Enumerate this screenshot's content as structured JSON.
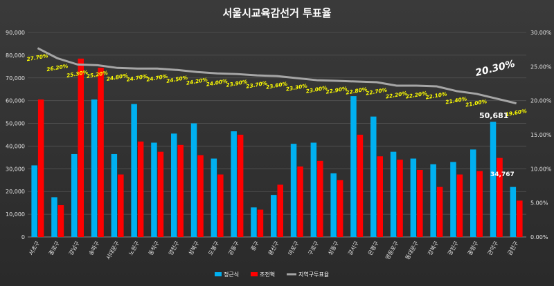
{
  "chart_data": {
    "type": "bar",
    "title": "서울시교육감선거 투표율",
    "categories": [
      "서초구",
      "종로구",
      "강남구",
      "송파구",
      "서대문구",
      "노원구",
      "동작구",
      "양천구",
      "성북구",
      "도봉구",
      "강동구",
      "중구",
      "용산구",
      "마포구",
      "구로구",
      "성동구",
      "강서구",
      "은평구",
      "영등포구",
      "동대문구",
      "강북구",
      "광진구",
      "중랑구",
      "관악구",
      "금천구"
    ],
    "series": [
      {
        "name": "정근식",
        "axis": "left",
        "color": "#00b0f0",
        "values": [
          31500,
          17500,
          36500,
          60500,
          36500,
          58500,
          41500,
          45500,
          50000,
          34500,
          46500,
          13000,
          18500,
          41000,
          41500,
          28000,
          62000,
          53000,
          37500,
          34500,
          32000,
          33000,
          38500,
          50681,
          22000
        ]
      },
      {
        "name": "조전혁",
        "axis": "left",
        "color": "#ff0000",
        "values": [
          60500,
          14000,
          78500,
          74500,
          27500,
          42000,
          37500,
          40500,
          36000,
          27500,
          45000,
          12000,
          23000,
          31000,
          33500,
          25000,
          45000,
          35500,
          34000,
          29500,
          22000,
          27500,
          29000,
          34767,
          16000
        ]
      },
      {
        "name": "지역구투표율",
        "axis": "right",
        "type": "line",
        "color": "#a6a6a6",
        "values": [
          27.7,
          26.2,
          25.3,
          25.2,
          24.8,
          24.7,
          24.7,
          24.5,
          24.2,
          24.0,
          23.9,
          23.7,
          23.6,
          23.3,
          23.0,
          22.9,
          22.8,
          22.7,
          22.2,
          22.2,
          22.1,
          21.4,
          21.0,
          20.3,
          19.6
        ],
        "labels": [
          "27.70%",
          "26.20%",
          "25.30%",
          "25.20%",
          "24.80%",
          "24.70%",
          "24.70%",
          "24.50%",
          "24.20%",
          "24.00%",
          "23.90%",
          "23.70%",
          "23.60%",
          "23.30%",
          "23.00%",
          "22.90%",
          "22.80%",
          "22.70%",
          "22.20%",
          "22.20%",
          "22.10%",
          "21.40%",
          "21.00%",
          "20.30%",
          "19.60%"
        ]
      }
    ],
    "y_left": {
      "min": 0,
      "max": 90000,
      "step": 10000,
      "tick_labels": [
        "0",
        "10,000",
        "20,000",
        "30,000",
        "40,000",
        "50,000",
        "60,000",
        "70,000",
        "80,000",
        "90,000"
      ]
    },
    "y_right": {
      "min": 0,
      "max": 30,
      "step": 5,
      "tick_labels": [
        "0.00%",
        "5.00%",
        "10.00%",
        "15.00%",
        "20.00%",
        "25.00%",
        "30.00%"
      ]
    },
    "callouts": {
      "rate": "20.30%",
      "bar1": "50,681",
      "bar2": "34,767"
    },
    "legend": {
      "placement": "bottom"
    },
    "grid": true
  }
}
